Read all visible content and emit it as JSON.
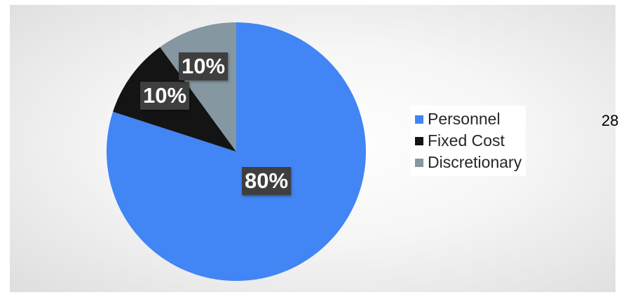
{
  "chart_data": {
    "type": "pie",
    "title": "",
    "slices": [
      {
        "label": "Personnel",
        "value": 80,
        "display": "80%",
        "color": "#4285f4"
      },
      {
        "label": "Fixed Cost",
        "value": 10,
        "display": "10%",
        "color": "#141414"
      },
      {
        "label": "Discretionary",
        "value": 10,
        "display": "10%",
        "color": "#8597a0"
      }
    ],
    "legend_position": "right"
  },
  "page": {
    "number": "28"
  }
}
